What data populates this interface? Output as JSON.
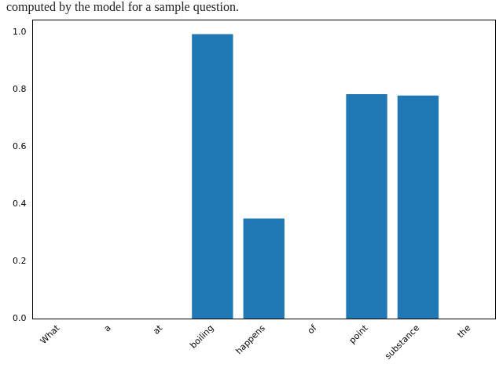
{
  "chart_data": {
    "type": "bar",
    "title": "computed by the model for a sample question.",
    "categories": [
      "What",
      "a",
      "at",
      "boiling",
      "happens",
      "of",
      "point",
      "substance",
      "the"
    ],
    "values": [
      0,
      0,
      0,
      0.995,
      0.35,
      0,
      0.785,
      0.78,
      0
    ],
    "color": "#1f77b4",
    "ylim": [
      0,
      1.045
    ],
    "yticks": [
      {
        "value": 0,
        "label": "0.0"
      },
      0.2,
      0.4,
      0.6,
      0.8,
      {
        "value": 1,
        "label": "1.0"
      }
    ],
    "grid": false
  }
}
